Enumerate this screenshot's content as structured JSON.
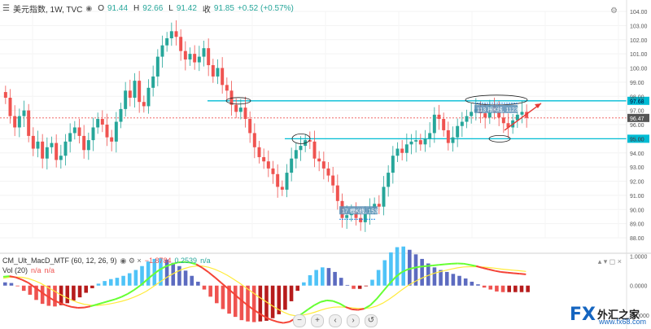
{
  "header": {
    "symbol": "美元指数, 1W, TVC",
    "open_label": "O",
    "open": "91.44",
    "high_label": "H",
    "high": "92.66",
    "low_label": "L",
    "low": "91.42",
    "close_label": "收",
    "close": "91.85",
    "change": "+0.52 (+0.57%)"
  },
  "indicator": {
    "name": "CM_Ult_MacD_MTF (60, 12, 26, 9)",
    "v1": "−1.8784",
    "v2": "0.2539",
    "v3": "n/a",
    "vol_name": "Vol (20)",
    "vol_v1": "n/a",
    "vol_v2": "n/a"
  },
  "annotations": {
    "high_label": "113 根K线, 1123",
    "low_label": "17 根K线, 153"
  },
  "controls": [
    "−",
    "+",
    "‹",
    "›",
    "↺"
  ],
  "logo": {
    "fx": "FX",
    "name": "外汇之家",
    "url": "www.fx68.com"
  },
  "colors": {
    "up": "#26a69a",
    "down": "#ef5350",
    "level": "#00bcd4",
    "last": "#ef5350",
    "signal": "#ffeb3b",
    "macd_up": "#66ff33",
    "macd_down": "#f44336"
  },
  "chart_data": {
    "type": "candlestick",
    "price_axis": {
      "ticks": [
        "88.00",
        "89.00",
        "90.00",
        "91.00",
        "92.00",
        "93.00",
        "94.00",
        "95.00",
        "96.00",
        "97.00",
        "98.00",
        "99.00",
        "100.00",
        "101.00",
        "102.00",
        "103.00",
        "104.00"
      ],
      "range": [
        88,
        104
      ]
    },
    "last_price": "96.47",
    "levels": [
      {
        "value": "97.68",
        "color": "#00bcd4"
      },
      {
        "value": "95.00",
        "color": "#00bcd4"
      }
    ],
    "closes": [
      97.9,
      96.6,
      95.8,
      96.6,
      97.0,
      95.2,
      94.3,
      94.8,
      93.6,
      94.4,
      94.7,
      93.5,
      93.8,
      94.8,
      95.4,
      95.8,
      95.2,
      94.2,
      94.9,
      95.8,
      96.4,
      96.0,
      95.1,
      94.8,
      96.2,
      97.1,
      98.4,
      97.9,
      99.1,
      97.6,
      97.3,
      98.6,
      99.4,
      100.8,
      101.6,
      102.1,
      102.6,
      102.2,
      101.2,
      100.6,
      101.0,
      100.4,
      100.8,
      101.4,
      100.2,
      99.4,
      100.0,
      98.8,
      98.4,
      97.4,
      96.9,
      97.2,
      96.4,
      95.4,
      94.4,
      93.7,
      93.4,
      92.9,
      92.5,
      91.6,
      91.4,
      92.6,
      93.6,
      94.2,
      94.5,
      94.9,
      94.8,
      93.6,
      93.4,
      92.9,
      92.4,
      91.7,
      90.6,
      89.4,
      89.6,
      89.9,
      89.4,
      89.1,
      89.7,
      90.1,
      90.4,
      90.2,
      91.6,
      92.6,
      93.8,
      94.3,
      94.0,
      94.6,
      94.8,
      94.9,
      94.6,
      95.0,
      95.4,
      96.7,
      96.4,
      95.6,
      94.7,
      95.1,
      95.9,
      96.2,
      96.6,
      96.9,
      97.1,
      96.8,
      96.5,
      97.3,
      96.9,
      96.5,
      96.1,
      95.8,
      96.3,
      96.7,
      96.9,
      96.47
    ],
    "macd": [
      0.3,
      0.32,
      0.28,
      0.2,
      0.1,
      -0.05,
      -0.2,
      -0.35,
      -0.48,
      -0.58,
      -0.66,
      -0.72,
      -0.75,
      -0.74,
      -0.7,
      -0.64,
      -0.58,
      -0.52,
      -0.46,
      -0.38,
      -0.28,
      -0.15,
      0.0,
      0.18,
      0.36,
      0.52,
      0.64,
      0.72,
      0.78,
      0.8,
      0.78,
      0.72,
      0.6,
      0.45,
      0.28,
      0.1,
      -0.08,
      -0.26,
      -0.45,
      -0.62,
      -0.78,
      -0.92,
      -1.05,
      -1.15,
      -1.22,
      -1.26,
      -1.22,
      -1.1,
      -0.95,
      -0.8,
      -0.66,
      -0.55,
      -0.5,
      -0.52,
      -0.6,
      -0.72,
      -0.8,
      -0.82,
      -0.78,
      -0.66,
      -0.45,
      -0.2,
      0.05,
      0.28,
      0.45,
      0.55,
      0.6,
      0.64,
      0.66,
      0.68,
      0.7,
      0.72,
      0.74,
      0.75,
      0.74,
      0.7,
      0.66,
      0.6,
      0.55,
      0.5,
      0.46,
      0.44,
      0.42,
      0.4,
      0.38
    ],
    "signal": [
      0.25,
      0.28,
      0.29,
      0.28,
      0.24,
      0.17,
      0.08,
      -0.04,
      -0.16,
      -0.28,
      -0.39,
      -0.49,
      -0.57,
      -0.63,
      -0.66,
      -0.67,
      -0.65,
      -0.62,
      -0.58,
      -0.53,
      -0.47,
      -0.39,
      -0.3,
      -0.19,
      -0.05,
      0.1,
      0.24,
      0.37,
      0.48,
      0.57,
      0.63,
      0.66,
      0.66,
      0.62,
      0.55,
      0.46,
      0.35,
      0.22,
      0.08,
      -0.07,
      -0.22,
      -0.37,
      -0.51,
      -0.65,
      -0.78,
      -0.89,
      -0.98,
      -1.02,
      -1.0,
      -0.96,
      -0.9,
      -0.83,
      -0.77,
      -0.73,
      -0.72,
      -0.73,
      -0.75,
      -0.77,
      -0.77,
      -0.75,
      -0.69,
      -0.59,
      -0.46,
      -0.31,
      -0.15,
      0.0,
      0.12,
      0.23,
      0.32,
      0.4,
      0.46,
      0.51,
      0.56,
      0.6,
      0.63,
      0.64,
      0.64,
      0.63,
      0.61,
      0.59,
      0.56,
      0.54,
      0.52,
      0.5,
      0.48
    ]
  }
}
